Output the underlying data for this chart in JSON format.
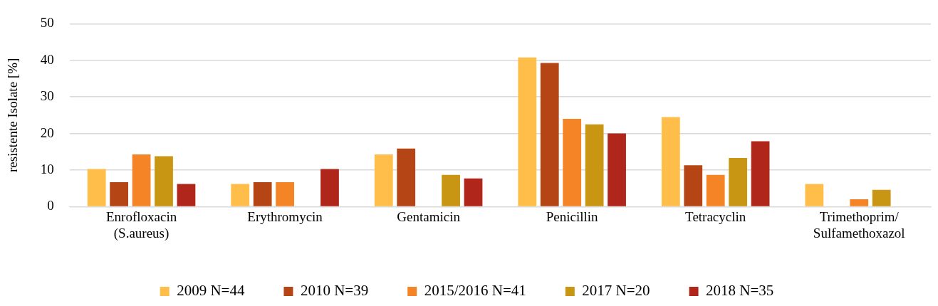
{
  "chart_data": {
    "type": "bar",
    "ylabel": "resistente Isolate [%]",
    "categories": [
      "Enrofloxacin (S.aureus)",
      "Erythromycin",
      "Gentamicin",
      "Penicillin",
      "Tetracyclin",
      "Trimethoprim/Sulfamethoxazol"
    ],
    "series": [
      {
        "name": "2009 N=44",
        "color": "#ffbd4a",
        "values": [
          10.3,
          6.2,
          14.3,
          40.8,
          24.5,
          6.2
        ]
      },
      {
        "name": "2010 N=39",
        "color": "#b54515",
        "values": [
          6.7,
          6.7,
          15.9,
          39.3,
          11.3,
          null
        ]
      },
      {
        "name": "2015/2016 N=41",
        "color": "#f58426",
        "values": [
          14.3,
          6.7,
          null,
          24,
          8.7,
          2.0
        ]
      },
      {
        "name": "2017 N=20",
        "color": "#c89612",
        "values": [
          13.8,
          null,
          8.7,
          22.5,
          13.3,
          4.6
        ]
      },
      {
        "name": "2018 N=35",
        "color": "#b0261a",
        "values": [
          6.2,
          10.3,
          7.7,
          20,
          17.9,
          null
        ]
      }
    ],
    "ylim": [
      0,
      50
    ],
    "yticks": [
      0,
      10,
      20,
      30,
      40,
      50
    ],
    "grid": "y",
    "legend": "bottom"
  }
}
